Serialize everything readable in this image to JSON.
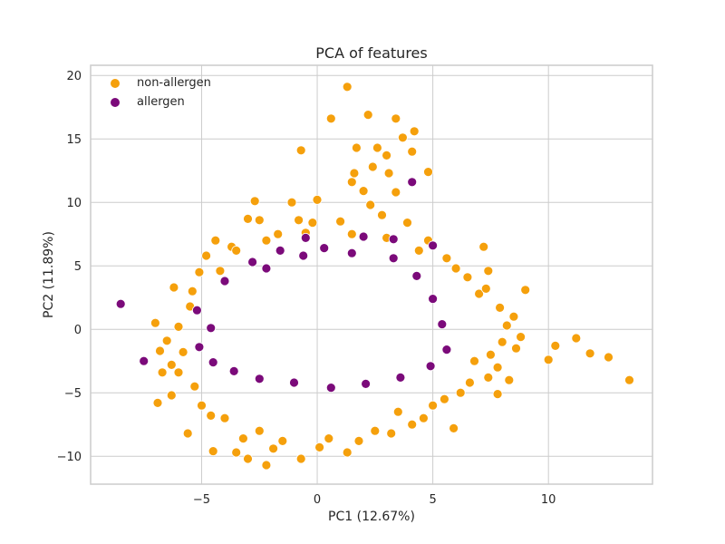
{
  "chart_data": {
    "type": "scatter",
    "title": "PCA of features",
    "xlabel": "PC1 (12.67%)",
    "ylabel": "PC2 (11.89%)",
    "xlim": [
      -9.8,
      14.5
    ],
    "ylim": [
      -12.2,
      20.8
    ],
    "xticks": [
      -5,
      0,
      5,
      10
    ],
    "yticks": [
      -10,
      -5,
      0,
      5,
      10,
      15,
      20
    ],
    "xtick_labels": [
      "−5",
      "0",
      "5",
      "10"
    ],
    "ytick_labels": [
      "−10",
      "−5",
      "0",
      "5",
      "10",
      "15",
      "20"
    ],
    "grid": true,
    "legend_position": "upper-left",
    "colors": {
      "non-allergen": "#f5a00c",
      "allergen": "#7b0a7a",
      "grid": "#cccccc",
      "frame": "#cccccc"
    },
    "series": [
      {
        "name": "non-allergen",
        "color": "#f5a00c",
        "points": [
          [
            1.3,
            19.1
          ],
          [
            2.2,
            16.9
          ],
          [
            0.6,
            16.6
          ],
          [
            3.4,
            16.6
          ],
          [
            4.2,
            15.6
          ],
          [
            3.7,
            15.1
          ],
          [
            2.6,
            14.3
          ],
          [
            -0.7,
            14.1
          ],
          [
            4.1,
            14.0
          ],
          [
            1.7,
            14.3
          ],
          [
            3.0,
            13.7
          ],
          [
            2.4,
            12.8
          ],
          [
            4.8,
            12.4
          ],
          [
            1.6,
            12.3
          ],
          [
            3.1,
            12.3
          ],
          [
            1.5,
            11.6
          ],
          [
            2.0,
            10.9
          ],
          [
            3.4,
            10.8
          ],
          [
            -2.7,
            10.1
          ],
          [
            -1.1,
            10.0
          ],
          [
            0.0,
            10.2
          ],
          [
            2.3,
            9.8
          ],
          [
            -3.0,
            8.7
          ],
          [
            -0.8,
            8.6
          ],
          [
            -2.5,
            8.6
          ],
          [
            7.2,
            6.5
          ],
          [
            -4.4,
            7.0
          ],
          [
            -3.7,
            6.5
          ],
          [
            -5.1,
            4.5
          ],
          [
            7.4,
            4.6
          ],
          [
            9.0,
            3.1
          ],
          [
            -6.2,
            3.3
          ],
          [
            -5.5,
            1.8
          ],
          [
            11.2,
            -0.7
          ],
          [
            12.6,
            -2.2
          ],
          [
            13.5,
            -4.0
          ],
          [
            11.8,
            -1.9
          ],
          [
            10.0,
            -2.4
          ],
          [
            10.3,
            -1.3
          ],
          [
            8.8,
            -0.6
          ],
          [
            -7.0,
            0.5
          ],
          [
            -6.5,
            -0.9
          ],
          [
            -6.8,
            -1.7
          ],
          [
            -6.3,
            -2.8
          ],
          [
            -6.7,
            -3.4
          ],
          [
            -6.0,
            -3.4
          ],
          [
            -6.3,
            -5.2
          ],
          [
            -6.9,
            -5.8
          ],
          [
            -5.6,
            -8.2
          ],
          [
            -4.5,
            -9.6
          ],
          [
            -3.5,
            -9.7
          ],
          [
            -3.0,
            -10.2
          ],
          [
            -2.2,
            -10.7
          ],
          [
            -0.7,
            -10.2
          ],
          [
            1.3,
            -9.7
          ],
          [
            5.9,
            -7.8
          ],
          [
            7.4,
            -3.8
          ],
          [
            8.3,
            -4.0
          ],
          [
            7.8,
            -5.1
          ],
          [
            4.1,
            -7.5
          ],
          [
            6.2,
            -5.0
          ],
          [
            -5.0,
            -6.0
          ],
          [
            -4.0,
            -7.0
          ],
          [
            -2.5,
            -8.0
          ],
          [
            -1.5,
            -8.8
          ],
          [
            0.5,
            -8.6
          ],
          [
            2.5,
            -8.0
          ],
          [
            3.5,
            -6.5
          ],
          [
            5.0,
            -6.0
          ],
          [
            6.8,
            -2.5
          ],
          [
            7.5,
            -2.0
          ],
          [
            8.0,
            -1.0
          ],
          [
            8.2,
            0.3
          ],
          [
            7.9,
            1.7
          ],
          [
            7.0,
            2.8
          ],
          [
            6.5,
            4.1
          ],
          [
            5.6,
            5.6
          ],
          [
            4.8,
            7.0
          ],
          [
            3.9,
            8.4
          ],
          [
            2.8,
            9.0
          ],
          [
            1.0,
            8.5
          ],
          [
            -0.2,
            8.4
          ],
          [
            -1.7,
            7.5
          ],
          [
            -4.8,
            5.8
          ],
          [
            -5.4,
            3.0
          ],
          [
            -6.0,
            0.2
          ],
          [
            -5.8,
            -1.8
          ],
          [
            -5.3,
            -4.5
          ],
          [
            -4.6,
            -6.8
          ],
          [
            -3.2,
            -8.6
          ],
          [
            -1.9,
            -9.4
          ],
          [
            0.1,
            -9.3
          ],
          [
            1.8,
            -8.8
          ],
          [
            3.2,
            -8.2
          ],
          [
            4.6,
            -7.0
          ],
          [
            5.5,
            -5.5
          ],
          [
            6.6,
            -4.2
          ],
          [
            7.8,
            -3.0
          ],
          [
            8.6,
            -1.5
          ],
          [
            8.5,
            1.0
          ],
          [
            7.3,
            3.2
          ],
          [
            6.0,
            4.8
          ],
          [
            4.4,
            6.2
          ],
          [
            3.0,
            7.2
          ],
          [
            1.5,
            7.5
          ],
          [
            -0.5,
            7.6
          ],
          [
            -2.2,
            7.0
          ],
          [
            -3.5,
            6.2
          ],
          [
            -4.2,
            4.6
          ]
        ]
      },
      {
        "name": "allergen",
        "color": "#7b0a7a",
        "points": [
          [
            -8.5,
            2.0
          ],
          [
            -7.5,
            -2.5
          ],
          [
            4.1,
            11.6
          ],
          [
            5.0,
            6.6
          ],
          [
            -1.6,
            6.2
          ],
          [
            -0.5,
            7.2
          ],
          [
            2.0,
            7.3
          ],
          [
            3.3,
            7.1
          ],
          [
            0.3,
            6.4
          ],
          [
            -2.8,
            5.3
          ],
          [
            -4.0,
            3.8
          ],
          [
            -5.2,
            1.5
          ],
          [
            -4.6,
            0.1
          ],
          [
            -5.1,
            -1.4
          ],
          [
            -4.5,
            -2.6
          ],
          [
            -3.6,
            -3.3
          ],
          [
            -2.5,
            -3.9
          ],
          [
            -1.0,
            -4.2
          ],
          [
            0.6,
            -4.6
          ],
          [
            2.1,
            -4.3
          ],
          [
            3.6,
            -3.8
          ],
          [
            4.9,
            -2.9
          ],
          [
            5.6,
            -1.6
          ],
          [
            5.4,
            0.4
          ],
          [
            5.0,
            2.4
          ],
          [
            4.3,
            4.2
          ],
          [
            3.3,
            5.6
          ],
          [
            1.5,
            6.0
          ],
          [
            -0.6,
            5.8
          ],
          [
            -2.2,
            4.8
          ]
        ]
      }
    ]
  }
}
